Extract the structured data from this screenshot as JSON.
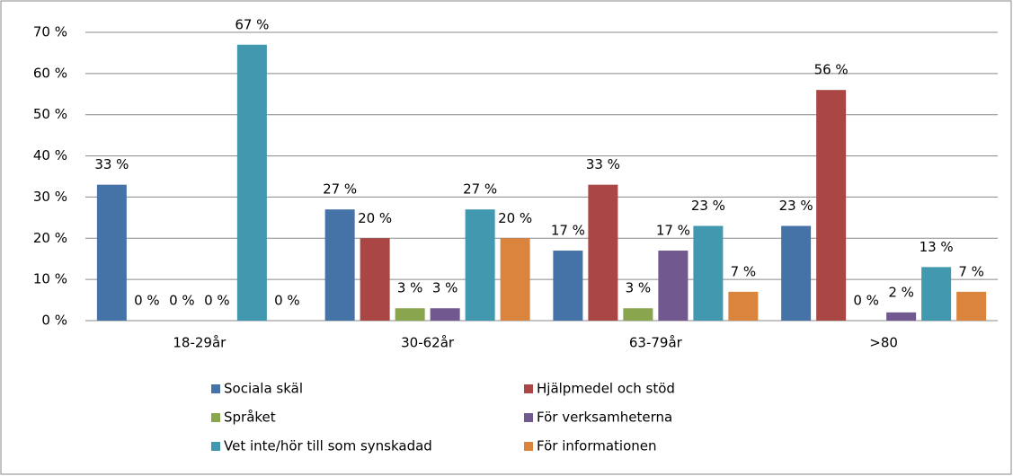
{
  "chart_data": {
    "type": "bar",
    "categories": [
      "18-29år",
      "30-62år",
      "63-79år",
      ">80"
    ],
    "series": [
      {
        "name": "Sociala skäl",
        "color": "#4572a7",
        "values": [
          33,
          27,
          17,
          23
        ],
        "value_labels": [
          "33 %",
          "27 %",
          "17 %",
          "23 %"
        ]
      },
      {
        "name": "Hjälpmedel och stöd",
        "color": "#aa4643",
        "values": [
          0,
          20,
          33,
          56
        ],
        "value_labels": [
          "0 %",
          "20 %",
          "33 %",
          "56 %"
        ]
      },
      {
        "name": "Språket",
        "color": "#89a54e",
        "values": [
          0,
          3,
          3,
          0
        ],
        "value_labels": [
          "0 %",
          "3 %",
          "3 %",
          "0 %"
        ]
      },
      {
        "name": "För verksamheterna",
        "color": "#71588f",
        "values": [
          0,
          3,
          17,
          2
        ],
        "value_labels": [
          "0 %",
          "3 %",
          "17 %",
          "2 %"
        ]
      },
      {
        "name": "Vet inte/hör till som synskadad",
        "color": "#4198af",
        "values": [
          67,
          27,
          23,
          13
        ],
        "value_labels": [
          "67 %",
          "27 %",
          "23 %",
          "13 %"
        ]
      },
      {
        "name": "För informationen",
        "color": "#db843d",
        "values": [
          0,
          20,
          7,
          7
        ],
        "value_labels": [
          "0 %",
          "20 %",
          "7 %",
          "7 %"
        ]
      }
    ],
    "ylim": [
      0,
      70
    ],
    "yticks": [
      {
        "value": 0,
        "label": "0 %"
      },
      {
        "value": 10,
        "label": "10 %"
      },
      {
        "value": 20,
        "label": "20 %"
      },
      {
        "value": 30,
        "label": "30 %"
      },
      {
        "value": 40,
        "label": "40 %"
      },
      {
        "value": 50,
        "label": "50 %"
      },
      {
        "value": 60,
        "label": "60 %"
      },
      {
        "value": 70,
        "label": "70 %"
      }
    ],
    "grid": true,
    "legend": "bottom"
  }
}
